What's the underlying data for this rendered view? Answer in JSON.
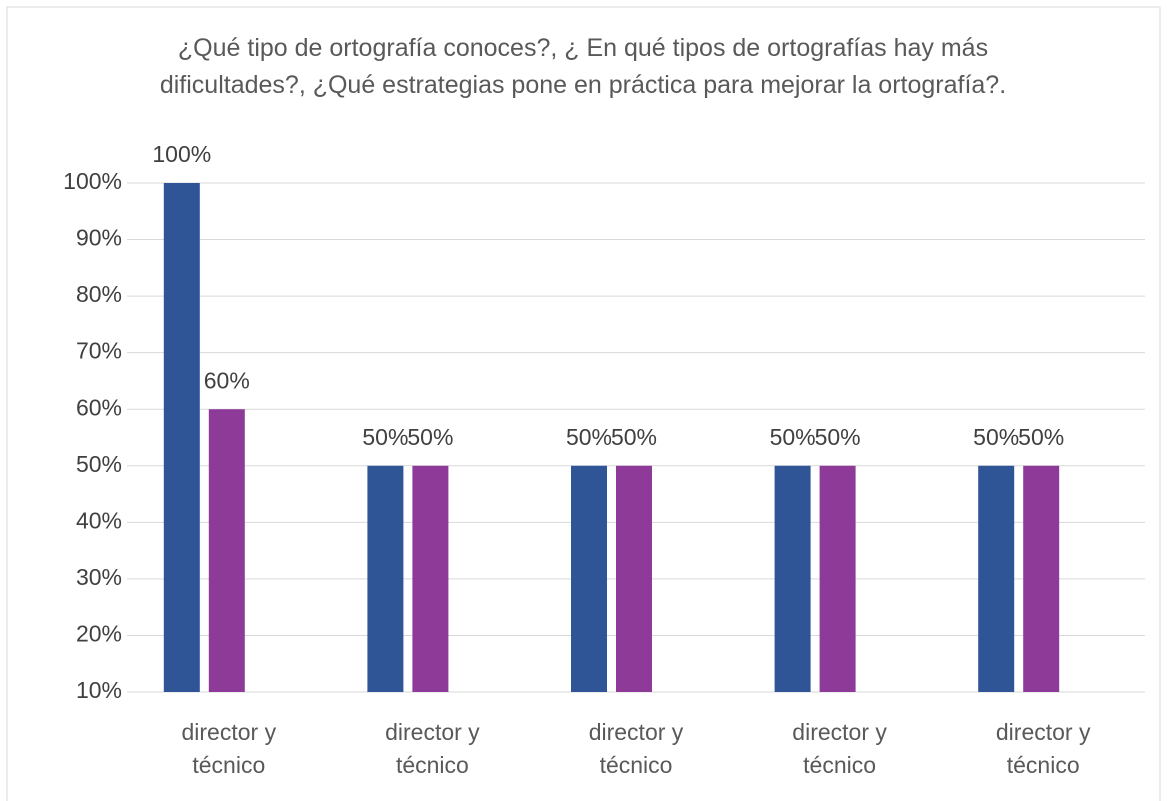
{
  "chart_data": {
    "type": "bar",
    "title": "¿Qué tipo de ortografía conoces?, ¿ En qué tipos de ortografías hay más dificultades?, ¿Qué estrategias pone en práctica para mejorar la ortografía?.",
    "categories": [
      "director y técnico",
      "director y técnico",
      "director y técnico",
      "director y técnico",
      "director y técnico"
    ],
    "series": [
      {
        "color": "#2f5597",
        "values": [
          100,
          50,
          50,
          50,
          50
        ],
        "value_labels": [
          "100%",
          "50%",
          "50%",
          "50%",
          "50%"
        ]
      },
      {
        "color": "#8e3a99",
        "values": [
          60,
          50,
          50,
          50,
          50
        ],
        "value_labels": [
          "60%",
          "50%",
          "50%",
          "50%",
          "50%"
        ]
      }
    ],
    "ylim": [
      10,
      100
    ],
    "yticks": [
      {
        "value": 10,
        "label": "10%"
      },
      {
        "value": 20,
        "label": "20%"
      },
      {
        "value": 30,
        "label": "30%"
      },
      {
        "value": 40,
        "label": "40%"
      },
      {
        "value": 50,
        "label": "50%"
      },
      {
        "value": 60,
        "label": "60%"
      },
      {
        "value": 70,
        "label": "70%"
      },
      {
        "value": 80,
        "label": "80%"
      },
      {
        "value": 90,
        "label": "90%"
      },
      {
        "value": 100,
        "label": "100%"
      }
    ],
    "grid": true
  }
}
